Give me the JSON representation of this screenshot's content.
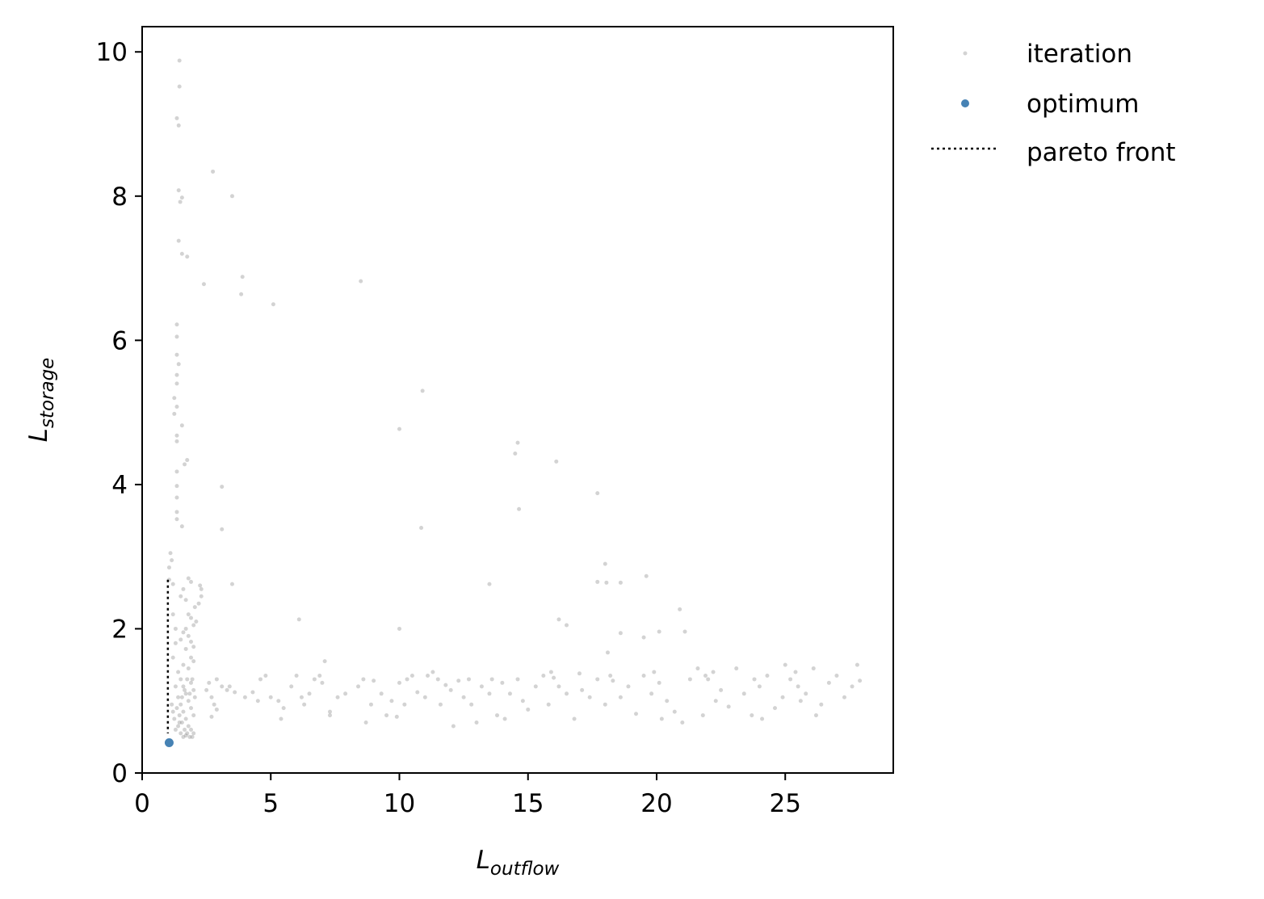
{
  "chart_data": {
    "type": "scatter",
    "xlabel": {
      "main": "L",
      "sub": "outflow"
    },
    "ylabel": {
      "main": "L",
      "sub": "storage"
    },
    "xlim": [
      0,
      29.2
    ],
    "ylim": [
      0,
      10.35
    ],
    "xticks": [
      0,
      5,
      10,
      15,
      20,
      25
    ],
    "yticks": [
      0,
      2,
      4,
      6,
      8,
      10
    ],
    "grid": false,
    "legend_position": "outside-top-right",
    "legend": [
      "iteration",
      "optimum",
      "pareto front"
    ],
    "colors": {
      "iteration": "#808080",
      "optimum": "#4682b4",
      "pareto_front": "#000000"
    },
    "series": [
      {
        "name": "iteration",
        "points": [
          [
            1.45,
            9.88
          ],
          [
            1.45,
            9.52
          ],
          [
            1.35,
            9.08
          ],
          [
            1.42,
            8.98
          ],
          [
            1.42,
            8.08
          ],
          [
            1.55,
            7.98
          ],
          [
            1.48,
            7.92
          ],
          [
            2.75,
            8.34
          ],
          [
            3.5,
            8.0
          ],
          [
            1.42,
            7.38
          ],
          [
            1.55,
            7.2
          ],
          [
            1.75,
            7.16
          ],
          [
            2.4,
            6.78
          ],
          [
            3.9,
            6.88
          ],
          [
            3.85,
            6.64
          ],
          [
            5.1,
            6.5
          ],
          [
            8.5,
            6.82
          ],
          [
            1.35,
            6.22
          ],
          [
            1.35,
            6.05
          ],
          [
            1.35,
            5.8
          ],
          [
            1.42,
            5.67
          ],
          [
            1.35,
            5.52
          ],
          [
            1.35,
            5.4
          ],
          [
            1.25,
            5.2
          ],
          [
            1.35,
            5.08
          ],
          [
            1.25,
            4.98
          ],
          [
            1.55,
            4.82
          ],
          [
            1.35,
            4.68
          ],
          [
            1.35,
            4.6
          ],
          [
            1.75,
            4.34
          ],
          [
            1.65,
            4.28
          ],
          [
            1.35,
            4.18
          ],
          [
            1.35,
            3.98
          ],
          [
            3.1,
            3.97
          ],
          [
            1.35,
            3.82
          ],
          [
            1.35,
            3.62
          ],
          [
            1.35,
            3.52
          ],
          [
            1.55,
            3.42
          ],
          [
            3.1,
            3.38
          ],
          [
            10.9,
            5.3
          ],
          [
            10.0,
            4.77
          ],
          [
            14.6,
            4.58
          ],
          [
            14.5,
            4.43
          ],
          [
            16.1,
            4.32
          ],
          [
            17.7,
            3.88
          ],
          [
            14.65,
            3.66
          ],
          [
            10.85,
            3.4
          ],
          [
            13.5,
            2.62
          ],
          [
            3.5,
            2.62
          ],
          [
            18.0,
            2.9
          ],
          [
            17.7,
            2.65
          ],
          [
            18.05,
            2.64
          ],
          [
            18.6,
            2.64
          ],
          [
            19.6,
            2.73
          ],
          [
            20.9,
            2.27
          ],
          [
            16.2,
            2.13
          ],
          [
            16.5,
            2.05
          ],
          [
            6.1,
            2.13
          ],
          [
            10.0,
            2.0
          ],
          [
            18.6,
            1.94
          ],
          [
            21.1,
            1.96
          ],
          [
            20.1,
            1.96
          ],
          [
            18.1,
            1.67
          ],
          [
            19.5,
            1.88
          ],
          [
            1.1,
            3.05
          ],
          [
            1.15,
            2.95
          ],
          [
            1.05,
            2.85
          ],
          [
            1.05,
            2.68
          ],
          [
            1.2,
            2.62
          ],
          [
            1.8,
            2.7
          ],
          [
            1.9,
            2.65
          ],
          [
            2.25,
            2.6
          ],
          [
            2.3,
            2.55
          ],
          [
            2.3,
            2.45
          ],
          [
            2.2,
            2.35
          ],
          [
            2.05,
            2.3
          ],
          [
            1.6,
            2.55
          ],
          [
            1.7,
            2.4
          ],
          [
            1.5,
            2.45
          ],
          [
            1.8,
            2.2
          ],
          [
            1.9,
            2.15
          ],
          [
            2.0,
            2.05
          ],
          [
            2.1,
            2.1
          ],
          [
            1.7,
            2.0
          ],
          [
            1.6,
            1.95
          ],
          [
            1.8,
            1.9
          ],
          [
            1.9,
            1.82
          ],
          [
            2.0,
            1.75
          ],
          [
            1.5,
            1.85
          ],
          [
            1.7,
            1.72
          ],
          [
            1.9,
            1.6
          ],
          [
            2.0,
            1.55
          ],
          [
            1.6,
            1.5
          ],
          [
            1.8,
            1.45
          ],
          [
            1.2,
            2.2
          ],
          [
            1.3,
            2.0
          ],
          [
            1.3,
            1.8
          ],
          [
            1.2,
            1.6
          ],
          [
            1.4,
            1.4
          ],
          [
            1.5,
            1.3
          ],
          [
            1.6,
            1.2
          ],
          [
            1.7,
            1.1
          ],
          [
            1.8,
            1.0
          ],
          [
            1.9,
            0.9
          ],
          [
            2.0,
            0.8
          ],
          [
            1.4,
            1.05
          ],
          [
            1.5,
            0.95
          ],
          [
            1.6,
            0.85
          ],
          [
            1.7,
            0.75
          ],
          [
            1.8,
            0.65
          ],
          [
            1.9,
            0.6
          ],
          [
            2.0,
            0.55
          ],
          [
            1.3,
            1.2
          ],
          [
            1.35,
            0.9
          ],
          [
            1.45,
            0.8
          ],
          [
            1.55,
            0.7
          ],
          [
            1.65,
            0.6
          ],
          [
            1.75,
            0.55
          ],
          [
            1.85,
            0.5
          ],
          [
            1.95,
            0.5
          ],
          [
            1.5,
            0.55
          ],
          [
            1.6,
            0.5
          ],
          [
            1.7,
            0.52
          ],
          [
            1.3,
            0.6
          ],
          [
            1.4,
            0.65
          ],
          [
            1.45,
            0.7
          ],
          [
            1.25,
            0.75
          ],
          [
            1.2,
            0.85
          ],
          [
            1.15,
            0.95
          ],
          [
            1.9,
            1.25
          ],
          [
            1.95,
            1.3
          ],
          [
            2.0,
            1.15
          ],
          [
            2.05,
            1.05
          ],
          [
            1.75,
            1.3
          ],
          [
            1.65,
            1.15
          ],
          [
            1.55,
            1.05
          ],
          [
            1.85,
            1.1
          ],
          [
            2.6,
            1.25
          ],
          [
            2.5,
            1.15
          ],
          [
            2.7,
            1.05
          ],
          [
            2.8,
            0.95
          ],
          [
            2.7,
            0.78
          ],
          [
            2.9,
            0.88
          ],
          [
            3.1,
            1.2
          ],
          [
            3.4,
            1.2
          ],
          [
            3.6,
            1.12
          ],
          [
            4.0,
            1.05
          ],
          [
            4.3,
            1.12
          ],
          [
            4.5,
            1.0
          ],
          [
            4.8,
            1.35
          ],
          [
            5.0,
            1.05
          ],
          [
            5.3,
            1.0
          ],
          [
            5.5,
            0.9
          ],
          [
            5.4,
            0.75
          ],
          [
            5.8,
            1.2
          ],
          [
            6.0,
            1.35
          ],
          [
            6.2,
            1.05
          ],
          [
            6.5,
            1.1
          ],
          [
            6.7,
            1.3
          ],
          [
            6.9,
            1.35
          ],
          [
            7.1,
            1.55
          ],
          [
            7.3,
            0.85
          ],
          [
            7.3,
            0.8
          ],
          [
            7.6,
            1.05
          ],
          [
            7.9,
            1.1
          ],
          [
            8.6,
            1.3
          ],
          [
            8.7,
            0.7
          ],
          [
            9.0,
            1.28
          ],
          [
            9.3,
            1.1
          ],
          [
            9.5,
            0.8
          ],
          [
            9.7,
            1.0
          ],
          [
            10.0,
            1.25
          ],
          [
            10.2,
            0.95
          ],
          [
            10.5,
            1.35
          ],
          [
            10.7,
            1.12
          ],
          [
            11.0,
            1.05
          ],
          [
            11.3,
            1.4
          ],
          [
            11.5,
            1.3
          ],
          [
            11.8,
            1.22
          ],
          [
            12.0,
            1.15
          ],
          [
            12.3,
            1.28
          ],
          [
            12.5,
            1.05
          ],
          [
            12.8,
            0.95
          ],
          [
            13.0,
            0.7
          ],
          [
            13.2,
            1.2
          ],
          [
            13.5,
            1.1
          ],
          [
            13.8,
            0.8
          ],
          [
            14.0,
            1.25
          ],
          [
            14.3,
            1.1
          ],
          [
            14.6,
            1.3
          ],
          [
            14.8,
            1.0
          ],
          [
            15.0,
            0.88
          ],
          [
            15.3,
            1.2
          ],
          [
            15.6,
            1.35
          ],
          [
            15.9,
            1.4
          ],
          [
            16.2,
            1.2
          ],
          [
            16.5,
            1.1
          ],
          [
            16.8,
            0.75
          ],
          [
            17.1,
            1.15
          ],
          [
            17.4,
            1.05
          ],
          [
            17.7,
            1.3
          ],
          [
            18.0,
            0.95
          ],
          [
            18.3,
            1.28
          ],
          [
            18.6,
            1.05
          ],
          [
            18.9,
            1.2
          ],
          [
            19.2,
            0.82
          ],
          [
            19.5,
            1.35
          ],
          [
            19.8,
            1.1
          ],
          [
            20.1,
            1.25
          ],
          [
            20.4,
            1.0
          ],
          [
            20.7,
            0.85
          ],
          [
            21.0,
            0.7
          ],
          [
            21.3,
            1.3
          ],
          [
            21.6,
            1.45
          ],
          [
            21.9,
            1.35
          ],
          [
            22.2,
            1.4
          ],
          [
            22.5,
            1.15
          ],
          [
            22.8,
            0.92
          ],
          [
            23.1,
            1.45
          ],
          [
            23.4,
            1.1
          ],
          [
            23.7,
            0.8
          ],
          [
            24.0,
            1.2
          ],
          [
            24.3,
            1.35
          ],
          [
            24.6,
            0.9
          ],
          [
            24.9,
            1.05
          ],
          [
            25.2,
            1.3
          ],
          [
            25.5,
            1.2
          ],
          [
            25.8,
            1.1
          ],
          [
            26.1,
            1.45
          ],
          [
            26.4,
            0.95
          ],
          [
            26.7,
            1.25
          ],
          [
            27.0,
            1.35
          ],
          [
            27.3,
            1.05
          ],
          [
            27.6,
            1.2
          ],
          [
            27.9,
            1.28
          ],
          [
            27.8,
            1.5
          ],
          [
            26.2,
            0.8
          ],
          [
            25.4,
            1.4
          ],
          [
            24.1,
            0.75
          ],
          [
            22.0,
            1.3
          ],
          [
            19.9,
            1.4
          ],
          [
            17.0,
            1.38
          ],
          [
            16.0,
            1.32
          ],
          [
            14.1,
            0.75
          ],
          [
            12.1,
            0.65
          ],
          [
            11.1,
            1.35
          ],
          [
            9.9,
            0.78
          ],
          [
            8.4,
            1.2
          ],
          [
            6.3,
            0.95
          ],
          [
            4.6,
            1.3
          ],
          [
            3.3,
            1.15
          ],
          [
            2.9,
            1.3
          ],
          [
            25.0,
            1.5
          ],
          [
            25.6,
            1.0
          ],
          [
            23.8,
            1.3
          ],
          [
            22.3,
            1.0
          ],
          [
            21.8,
            0.8
          ],
          [
            20.2,
            0.75
          ],
          [
            18.2,
            1.35
          ],
          [
            15.8,
            0.95
          ],
          [
            13.6,
            1.3
          ],
          [
            12.7,
            1.3
          ],
          [
            11.6,
            0.95
          ],
          [
            10.3,
            1.3
          ],
          [
            8.9,
            0.95
          ],
          [
            7.0,
            1.25
          ]
        ]
      },
      {
        "name": "optimum",
        "points": [
          [
            1.05,
            0.42
          ]
        ]
      },
      {
        "name": "pareto front",
        "points": [
          [
            1.0,
            2.68
          ],
          [
            1.0,
            0.55
          ]
        ]
      }
    ]
  }
}
